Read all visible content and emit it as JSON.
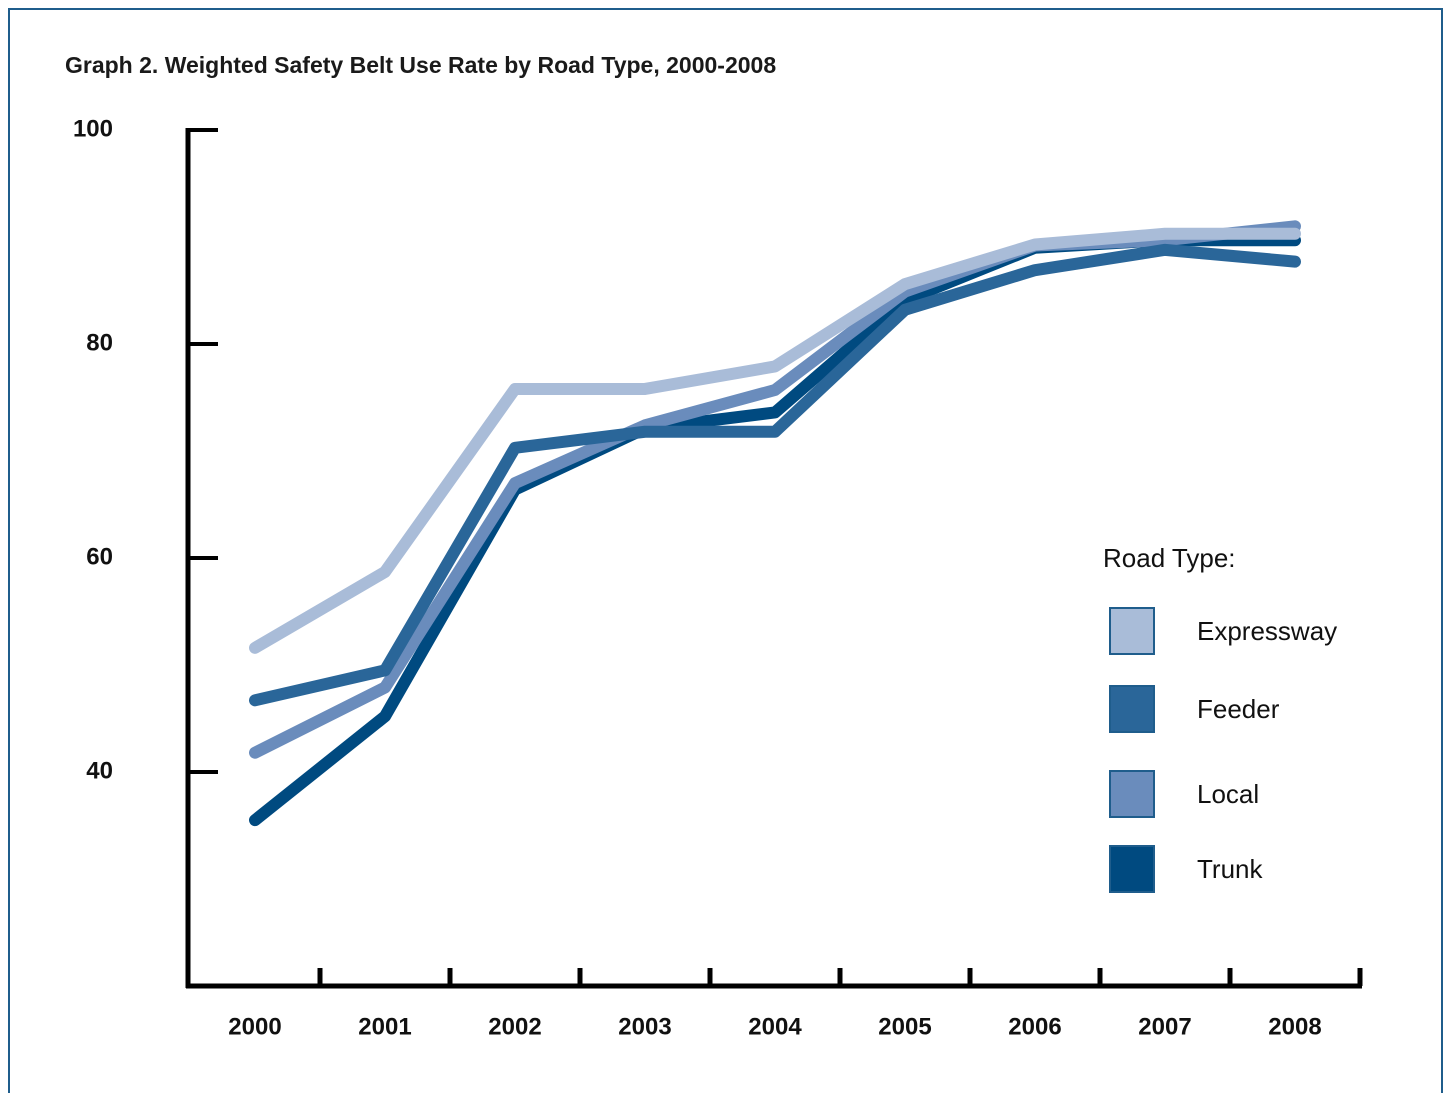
{
  "chart_data": {
    "type": "line",
    "title": "Graph 2.  Weighted Safety Belt Use Rate by Road Type, 2000-2008",
    "categories": [
      "2000",
      "2001",
      "2002",
      "2003",
      "2004",
      "2005",
      "2006",
      "2007",
      "2008"
    ],
    "legend_title": "Road Type:",
    "legend": "right",
    "series": [
      {
        "name": "Expressway",
        "color": "#a9bcd8",
        "values": [
          51.6,
          58.7,
          75.8,
          75.8,
          77.9,
          85.6,
          89.3,
          90.3,
          90.3
        ]
      },
      {
        "name": "Feeder",
        "color": "#2a6699",
        "values": [
          46.7,
          49.5,
          70.3,
          71.8,
          71.8,
          83.2,
          86.9,
          88.8,
          87.7
        ]
      },
      {
        "name": "Local",
        "color": "#6a8cbc",
        "values": [
          41.8,
          47.9,
          67.0,
          72.4,
          75.7,
          84.9,
          89.2,
          89.7,
          91.0
        ]
      },
      {
        "name": "Trunk",
        "color": "#004a80",
        "values": [
          35.5,
          45.2,
          66.4,
          72.1,
          73.6,
          84.1,
          89.0,
          89.7,
          89.7
        ]
      }
    ],
    "ylim": [
      20,
      100
    ],
    "yticks": [
      40,
      60,
      80,
      100
    ]
  }
}
